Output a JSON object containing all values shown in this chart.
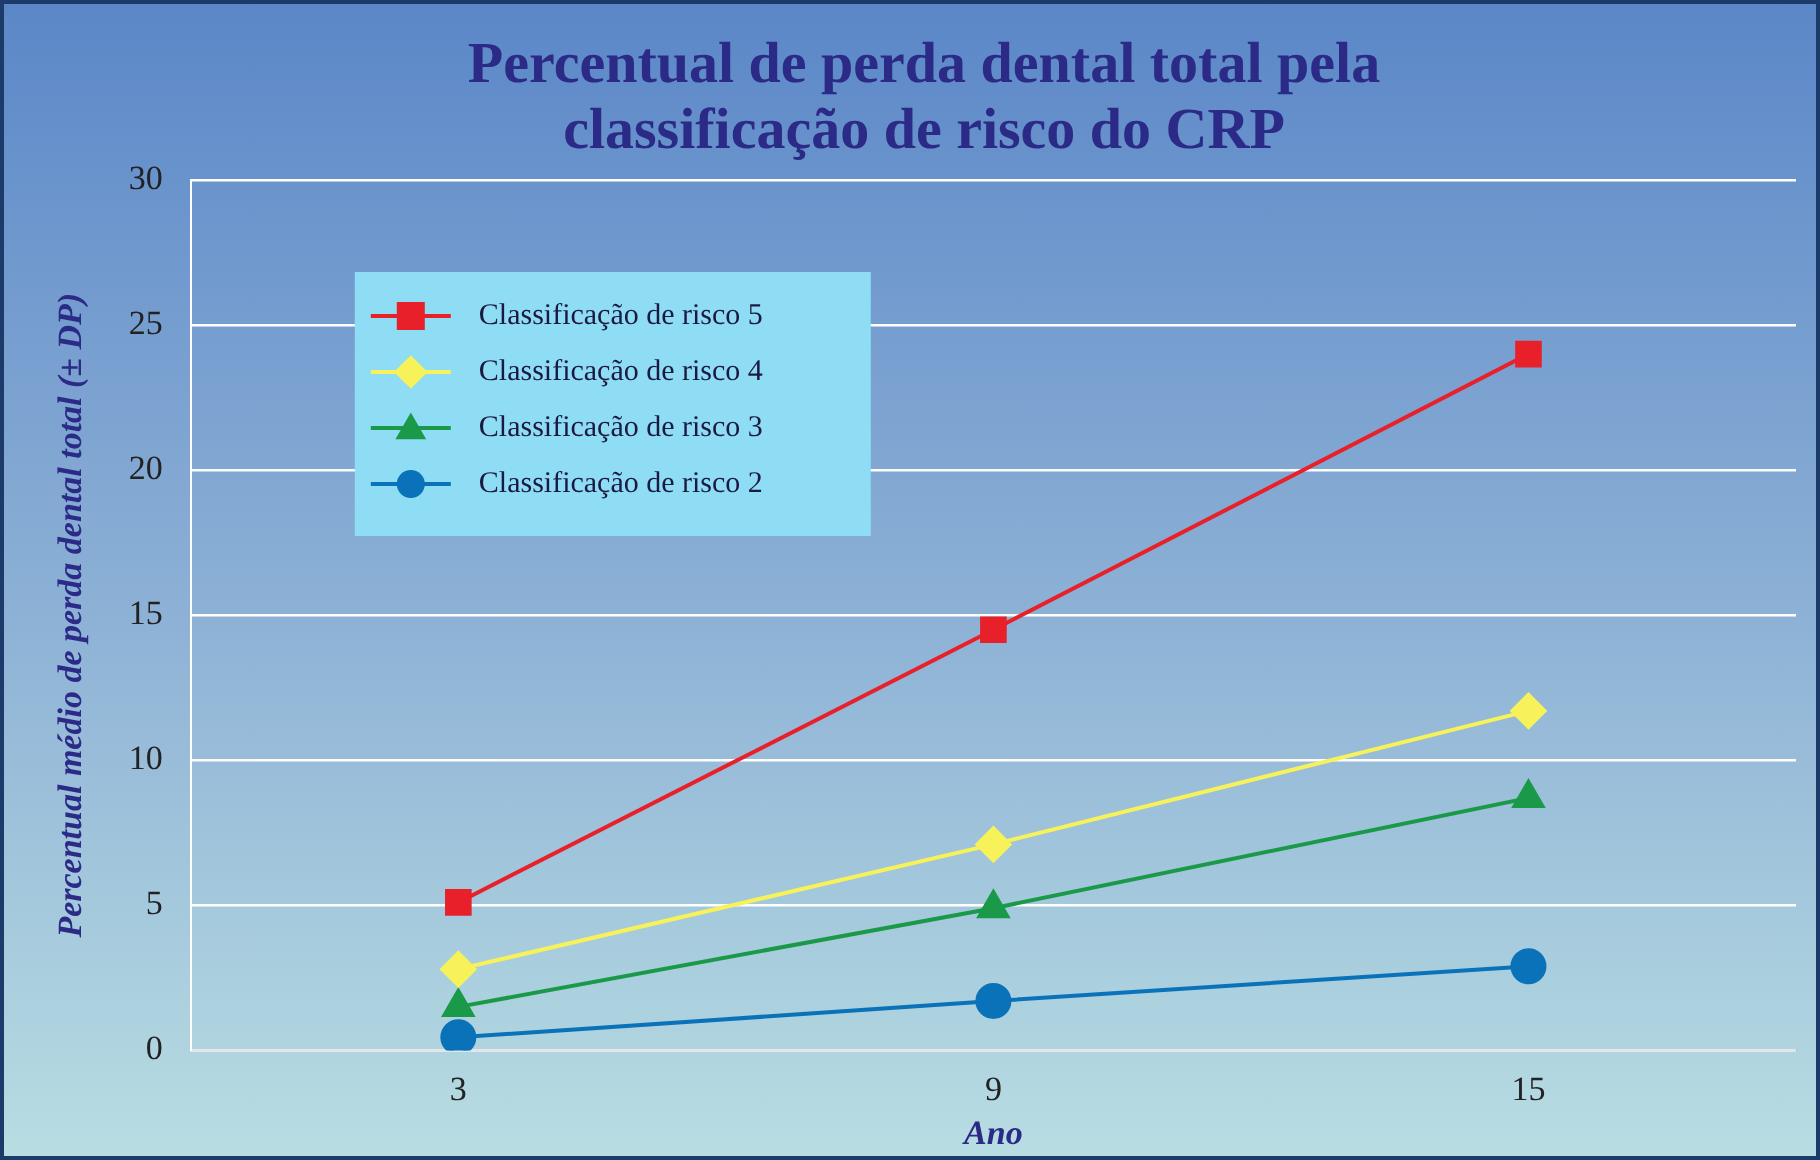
{
  "chart_data": {
    "type": "line",
    "title": "Percentual de perda dental total pela classificação de risco do CRP",
    "xlabel": "Ano",
    "ylabel": "Percentual médio de perda dental total (± DP)",
    "categories": [
      "3",
      "9",
      "15"
    ],
    "series": [
      {
        "name": "Classificação de risco 5",
        "color": "#e8202a",
        "marker": "square",
        "values": [
          5.1,
          14.5,
          24.0
        ]
      },
      {
        "name": "Classificação de risco 4",
        "color": "#f7f25a",
        "marker": "diamond",
        "values": [
          2.8,
          7.1,
          11.7
        ]
      },
      {
        "name": "Classificação de risco 3",
        "color": "#1a9a48",
        "marker": "triangle",
        "values": [
          1.5,
          4.9,
          8.7
        ]
      },
      {
        "name": "Classificação de risco 2",
        "color": "#0a72b8",
        "marker": "circle",
        "values": [
          0.45,
          1.7,
          2.9
        ]
      }
    ],
    "ylim": [
      0,
      30
    ],
    "yticks": [
      0,
      5,
      10,
      15,
      20,
      25,
      30
    ],
    "grid": "y",
    "legend": "top left",
    "line_style": "solid"
  }
}
